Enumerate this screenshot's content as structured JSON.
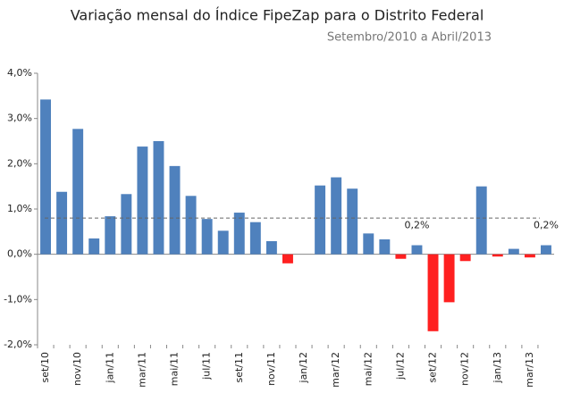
{
  "chart_data": {
    "type": "bar",
    "title": "Variação mensal do Índice FipeZap para o Distrito Federal",
    "subtitle": "Setembro/2010 a Abril/2013",
    "categories": [
      "set/10",
      null,
      "nov/10",
      null,
      "jan/11",
      null,
      "mar/11",
      null,
      "mai/11",
      null,
      "jul/11",
      null,
      "set/11",
      null,
      "nov/11",
      null,
      "jan/12",
      null,
      "mar/12",
      null,
      "mai/12",
      null,
      "jul/12",
      null,
      "set/12",
      null,
      "nov/12",
      null,
      "jan/13",
      null,
      "mar/13",
      null
    ],
    "values": [
      3.42,
      1.38,
      2.77,
      0.35,
      0.84,
      1.33,
      2.38,
      2.5,
      1.95,
      1.29,
      0.78,
      0.52,
      0.92,
      0.71,
      0.29,
      -0.2,
      0,
      1.52,
      1.7,
      1.45,
      0.46,
      0.33,
      -0.1,
      0.2,
      -1.7,
      -1.06,
      -0.15,
      1.5,
      -0.05,
      0.12,
      -0.07,
      0.2
    ],
    "value_labels": [
      null,
      null,
      null,
      null,
      null,
      null,
      null,
      null,
      null,
      null,
      null,
      null,
      null,
      null,
      null,
      null,
      null,
      null,
      null,
      null,
      null,
      null,
      null,
      "0,2%",
      null,
      null,
      null,
      null,
      null,
      null,
      null,
      "0,2%"
    ],
    "color": "#4f81bd",
    "negative_color": "#ff2020",
    "reference_line": 0.8,
    "ylim": [
      -2,
      4
    ],
    "yticks": [
      {
        "value": -2,
        "label": "-2,0%"
      },
      {
        "value": -1,
        "label": "-1,0%"
      },
      {
        "value": 0,
        "label": "0,0%"
      },
      {
        "value": 1,
        "label": "1,0%"
      },
      {
        "value": 2,
        "label": "2,0%"
      },
      {
        "value": 3,
        "label": "3,0%"
      },
      {
        "value": 4,
        "label": "4,0%"
      }
    ],
    "grid": false
  }
}
